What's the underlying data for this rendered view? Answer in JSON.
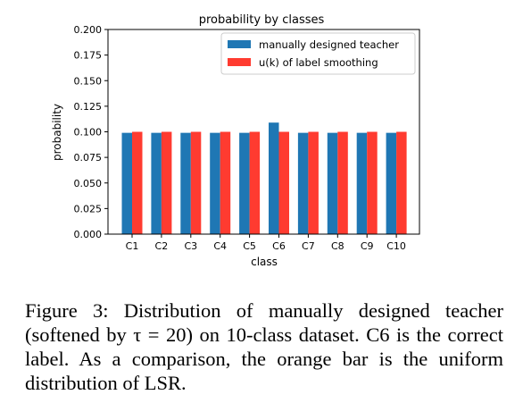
{
  "chart_data": {
    "type": "bar",
    "title": "probability by classes",
    "xlabel": "class",
    "ylabel": "probability",
    "categories": [
      "C1",
      "C2",
      "C3",
      "C4",
      "C5",
      "C6",
      "C7",
      "C8",
      "C9",
      "C10"
    ],
    "series": [
      {
        "name": "manually designed teacher",
        "color": "#1f77b4",
        "values": [
          0.099,
          0.099,
          0.099,
          0.099,
          0.099,
          0.109,
          0.099,
          0.099,
          0.099,
          0.099
        ]
      },
      {
        "name": "u(k) of label smoothing",
        "color": "#ff3b30",
        "values": [
          0.1,
          0.1,
          0.1,
          0.1,
          0.1,
          0.1,
          0.1,
          0.1,
          0.1,
          0.1
        ]
      }
    ],
    "ylim": [
      0,
      0.2
    ],
    "yticks": [
      "0.000",
      "0.025",
      "0.050",
      "0.075",
      "0.100",
      "0.125",
      "0.150",
      "0.175",
      "0.200"
    ],
    "grid": false,
    "legend_position": "top-right"
  },
  "caption": "Figure 3: Distribution of manually designed teacher (softened by τ = 20) on 10-class dataset. C6 is the correct label. As a comparison, the orange bar is the uniform distribution of LSR."
}
